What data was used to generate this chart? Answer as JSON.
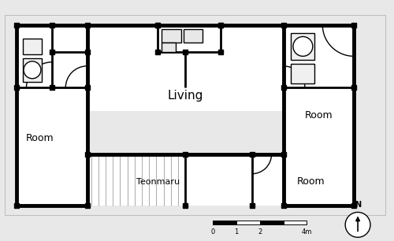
{
  "bg_color": "#e8e8e8",
  "wall_color": "#000000",
  "figsize": [
    5.0,
    3.06
  ],
  "dpi": 100,
  "xlim": [
    0,
    100
  ],
  "ylim": [
    0,
    61.2
  ]
}
